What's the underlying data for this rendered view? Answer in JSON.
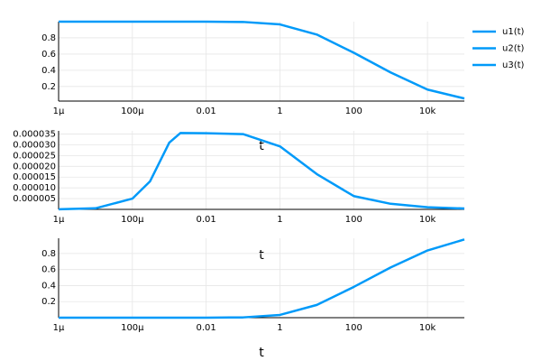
{
  "chart_data": [
    {
      "type": "line",
      "xscale": "log",
      "xlabel": "t",
      "grid": true,
      "legend": "right-top",
      "x": [
        1e-06,
        1e-05,
        0.0001,
        0.0003,
        0.001,
        0.002,
        0.01,
        0.1,
        1,
        10,
        100,
        1000,
        10000,
        100000
      ],
      "series": [
        {
          "name": "u1(t)",
          "color": "#009af9",
          "values": [
            1,
            1,
            1,
            1,
            1,
            0.99996,
            0.9996,
            0.9965,
            0.966,
            0.841,
            0.617,
            0.374,
            0.162,
            0.052
          ]
        }
      ],
      "xlim": [
        1e-06,
        100000.0
      ],
      "ylim": [
        0.02,
        1.0
      ],
      "xticks": [
        {
          "value": 1e-06,
          "label": "1μ"
        },
        {
          "value": 0.0001,
          "label": "100μ"
        },
        0.01,
        1,
        100,
        {
          "value": 10000,
          "label": "10k"
        }
      ],
      "yticks": [
        0.2,
        0.4,
        0.6,
        0.8
      ]
    },
    {
      "type": "line",
      "xscale": "log",
      "xlabel": "t",
      "grid": true,
      "x": [
        1e-06,
        1e-05,
        0.0001,
        0.0003,
        0.001,
        0.002,
        0.01,
        0.1,
        1,
        10,
        100,
        1000,
        10000,
        100000
      ],
      "series": [
        {
          "name": "u2(t)",
          "color": "#009af9",
          "values": [
            4e-08,
            5e-07,
            5e-06,
            1.3e-05,
            3.1e-05,
            3.55e-05,
            3.54e-05,
            3.5e-05,
            2.93e-05,
            1.64e-05,
            6.2e-06,
            2.6e-06,
            1e-06,
            4e-07
          ]
        }
      ],
      "xlim": [
        1e-06,
        100000.0
      ],
      "ylim": [
        0,
        3.65e-05
      ],
      "xticks": [
        {
          "value": 1e-06,
          "label": "1μ"
        },
        {
          "value": 0.0001,
          "label": "100μ"
        },
        0.01,
        1,
        100,
        {
          "value": 10000,
          "label": "10k"
        }
      ],
      "yticks": [
        5e-06,
        {
          "value": 1e-05,
          "label": "0.000010"
        },
        1.5e-05,
        {
          "value": 2e-05,
          "label": "0.000020"
        },
        2.5e-05,
        {
          "value": 3e-05,
          "label": "0.000030"
        },
        3.5e-05
      ]
    },
    {
      "type": "line",
      "xscale": "log",
      "xlabel": "t",
      "grid": true,
      "x": [
        1e-06,
        1e-05,
        0.0001,
        0.0003,
        0.001,
        0.002,
        0.01,
        0.1,
        1,
        10,
        100,
        1000,
        10000,
        100000
      ],
      "series": [
        {
          "name": "u3(t)",
          "color": "#009af9",
          "values": [
            0,
            0,
            0,
            0,
            0,
            4e-06,
            0.0004,
            0.0035,
            0.034,
            0.159,
            0.383,
            0.626,
            0.838,
            0.975
          ]
        }
      ],
      "xlim": [
        1e-06,
        100000.0
      ],
      "ylim": [
        0,
        0.99
      ],
      "xticks": [
        {
          "value": 1e-06,
          "label": "1μ"
        },
        {
          "value": 0.0001,
          "label": "100μ"
        },
        0.01,
        1,
        100,
        {
          "value": 10000,
          "label": "10k"
        }
      ],
      "yticks": [
        0.2,
        0.4,
        0.6,
        0.8
      ]
    }
  ]
}
